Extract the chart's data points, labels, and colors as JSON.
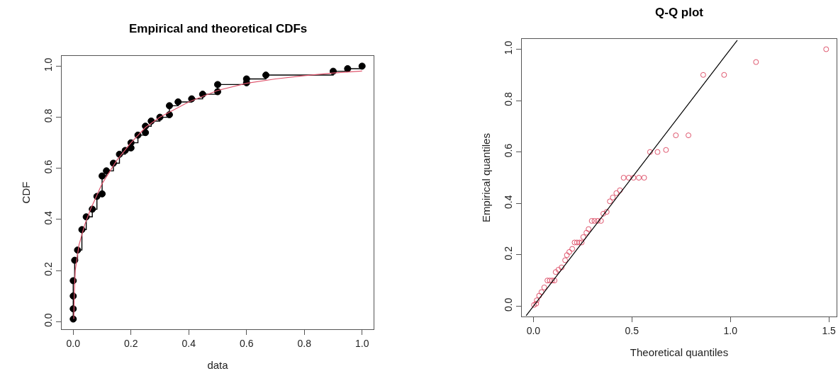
{
  "chart_data": [
    {
      "type": "line",
      "title": "Empirical and theoretical CDFs",
      "xlabel": "data",
      "ylabel": "CDF",
      "xlim": [
        -0.04,
        1.04
      ],
      "ylim": [
        -0.03,
        1.04
      ],
      "xticks": [
        {
          "value": 0,
          "label": "0.0"
        },
        {
          "value": 0.2,
          "label": "0.2"
        },
        {
          "value": 0.4,
          "label": "0.4"
        },
        {
          "value": 0.6,
          "label": "0.6"
        },
        {
          "value": 0.8,
          "label": "0.8"
        },
        {
          "value": 1,
          "label": "1.0"
        }
      ],
      "yticks": [
        {
          "value": 0,
          "label": "0.0"
        },
        {
          "value": 0.2,
          "label": "0.2"
        },
        {
          "value": 0.4,
          "label": "0.4"
        },
        {
          "value": 0.6,
          "label": "0.6"
        },
        {
          "value": 0.8,
          "label": "0.8"
        },
        {
          "value": 1,
          "label": "1.0"
        }
      ],
      "series": [
        {
          "type": "step",
          "color": "#000000",
          "marker": "circle",
          "x": [
            0,
            0,
            0,
            0,
            0.005,
            0.015,
            0.03,
            0.045,
            0.066,
            0.082,
            0.1,
            0.1,
            0.115,
            0.139,
            0.16,
            0.18,
            0.2,
            0.2,
            0.224,
            0.25,
            0.25,
            0.27,
            0.3,
            0.333,
            0.333,
            0.363,
            0.41,
            0.448,
            0.5,
            0.5,
            0.6,
            0.6,
            0.667,
            0.9,
            0.95,
            1.0
          ],
          "values": [
            0.01,
            0.05,
            0.1,
            0.16,
            0.24,
            0.28,
            0.36,
            0.41,
            0.44,
            0.49,
            0.5,
            0.57,
            0.59,
            0.62,
            0.655,
            0.67,
            0.68,
            0.7,
            0.73,
            0.74,
            0.765,
            0.785,
            0.8,
            0.81,
            0.845,
            0.86,
            0.872,
            0.89,
            0.9,
            0.928,
            0.935,
            0.95,
            0.965,
            0.98,
            0.99,
            1.0
          ]
        },
        {
          "color": "#df536b",
          "marker": "none",
          "x": [
            0.002,
            0.004,
            0.007,
            0.02,
            0.04,
            0.06,
            0.08,
            0.1,
            0.15,
            0.2,
            0.25,
            0.3,
            0.4,
            0.5,
            0.6,
            0.7,
            0.8,
            0.9,
            1.0
          ],
          "values": [
            0.01,
            0.12,
            0.2,
            0.3,
            0.38,
            0.44,
            0.49,
            0.54,
            0.63,
            0.7,
            0.76,
            0.8,
            0.86,
            0.905,
            0.933,
            0.95,
            0.963,
            0.973,
            0.981
          ]
        }
      ]
    },
    {
      "type": "scatter",
      "title": "Q-Q plot",
      "xlabel": "Theoretical quantiles",
      "ylabel": "Empirical quantiles",
      "xlim": [
        -0.059,
        1.539
      ],
      "ylim": [
        -0.04,
        1.04
      ],
      "xticks": [
        {
          "value": 0,
          "label": "0.0"
        },
        {
          "value": 0.5,
          "label": "0.5"
        },
        {
          "value": 1,
          "label": "1.0"
        },
        {
          "value": 1.5,
          "label": "1.5"
        }
      ],
      "yticks": [
        {
          "value": 0,
          "label": "0.0"
        },
        {
          "value": 0.2,
          "label": "0.2"
        },
        {
          "value": 0.4,
          "label": "0.4"
        },
        {
          "value": 0.6,
          "label": "0.6"
        },
        {
          "value": 0.8,
          "label": "0.8"
        },
        {
          "value": 1,
          "label": "1.0"
        }
      ],
      "series": [
        {
          "color": "#df536b",
          "marker": "circle",
          "x": [
            0.003,
            0.014,
            0.017,
            0.029,
            0.041,
            0.055,
            0.071,
            0.083,
            0.095,
            0.107,
            0.113,
            0.127,
            0.143,
            0.161,
            0.17,
            0.182,
            0.197,
            0.209,
            0.221,
            0.233,
            0.245,
            0.253,
            0.269,
            0.28,
            0.296,
            0.31,
            0.326,
            0.343,
            0.355,
            0.372,
            0.388,
            0.403,
            0.421,
            0.439,
            0.458,
            0.484,
            0.508,
            0.535,
            0.562,
            0.592,
            0.63,
            0.673,
            0.723,
            0.787,
            0.862,
            0.968,
            1.13,
            1.486
          ],
          "values": [
            0.005,
            0.01,
            0.023,
            0.041,
            0.055,
            0.073,
            0.1,
            0.1,
            0.1,
            0.1,
            0.133,
            0.142,
            0.151,
            0.179,
            0.199,
            0.211,
            0.223,
            0.248,
            0.248,
            0.248,
            0.248,
            0.269,
            0.286,
            0.3,
            0.332,
            0.332,
            0.332,
            0.332,
            0.36,
            0.367,
            0.408,
            0.423,
            0.44,
            0.451,
            0.5,
            0.5,
            0.5,
            0.5,
            0.5,
            0.6,
            0.6,
            0.608,
            0.665,
            0.665,
            0.9,
            0.9,
            0.95,
            1.0
          ]
        },
        {
          "type": "line",
          "color": "#000000",
          "marker": "none",
          "x": [
            -0.037,
            1.035
          ],
          "values": [
            -0.037,
            1.035
          ]
        }
      ]
    }
  ]
}
